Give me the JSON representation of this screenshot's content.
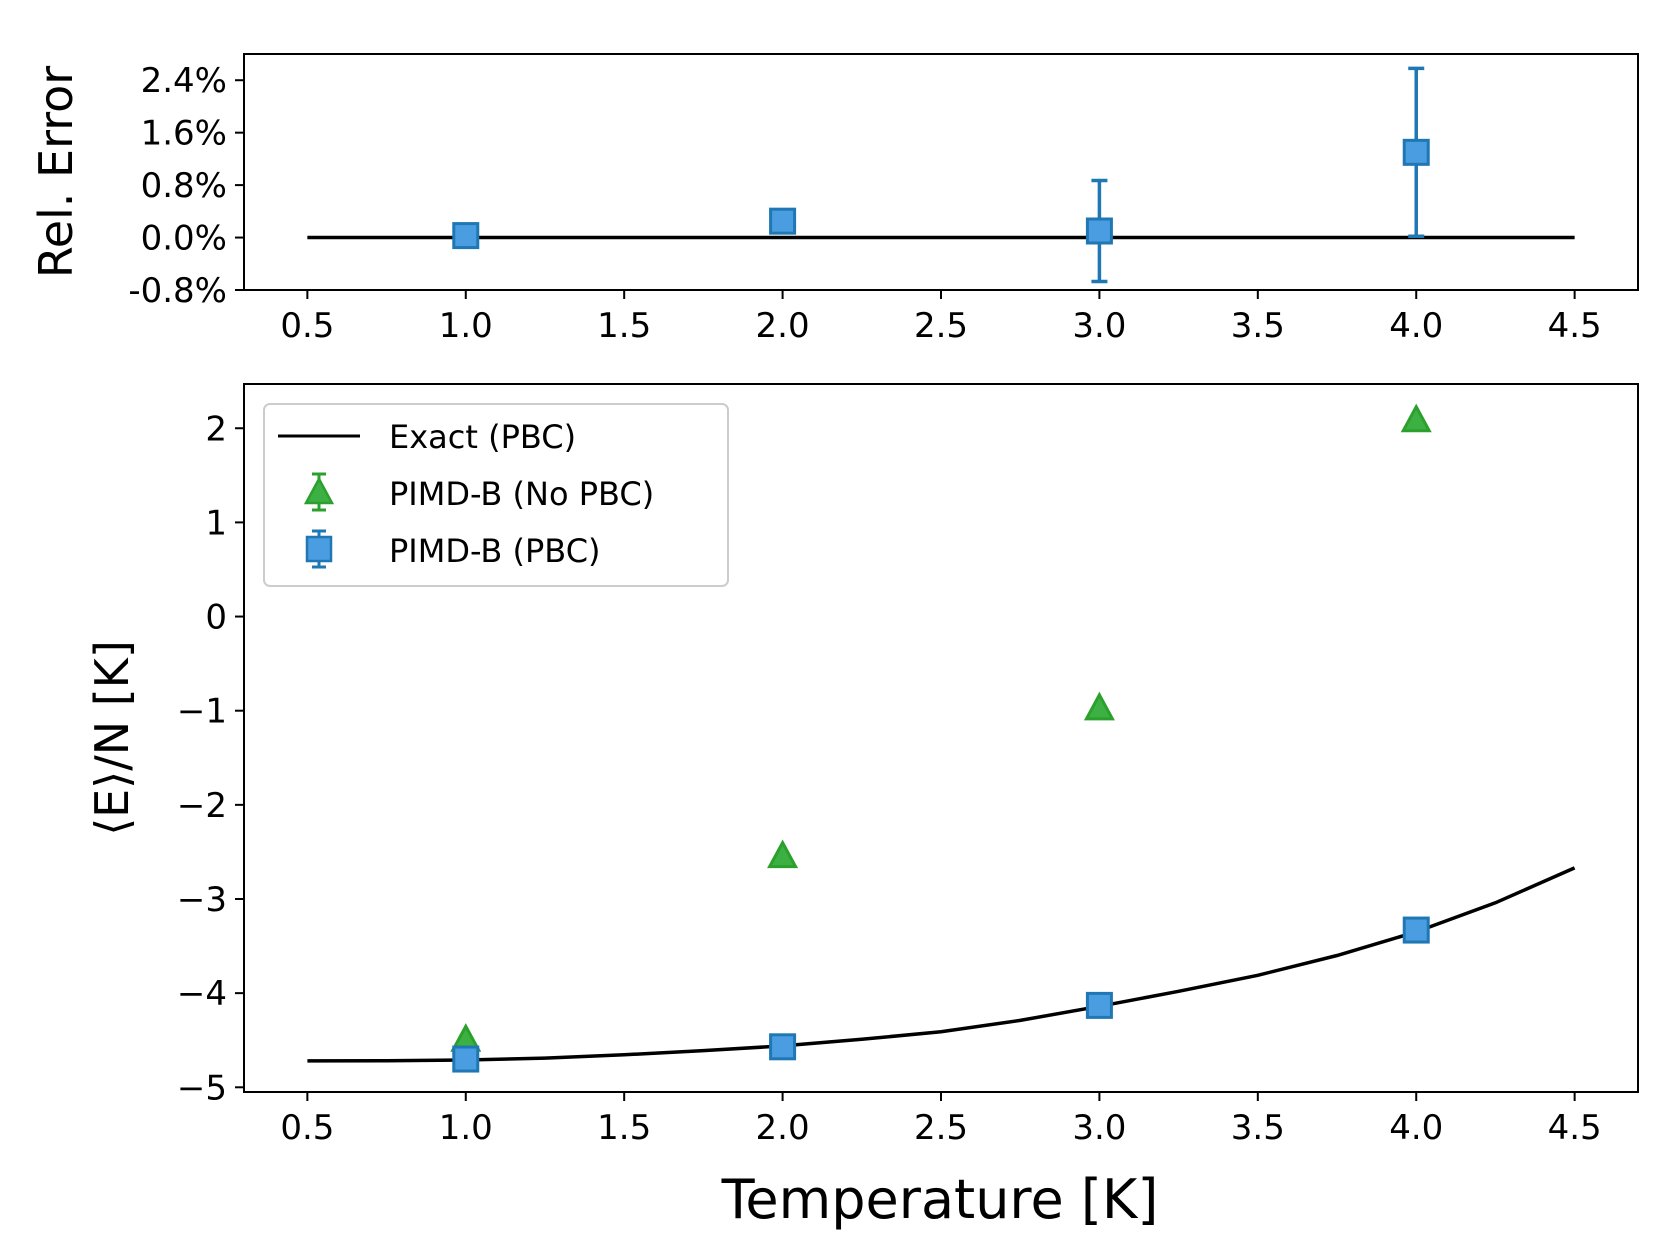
{
  "chart_data": [
    {
      "type": "scatter",
      "panel": "top",
      "ylabel": "Rel. Error",
      "xlabel": "",
      "xlim": [
        0.3,
        4.7
      ],
      "ylim": [
        -0.8,
        2.8
      ],
      "x_ticks": [
        0.5,
        1.0,
        1.5,
        2.0,
        2.5,
        3.0,
        3.5,
        4.0,
        4.5
      ],
      "x_tick_labels": [
        "0.5",
        "1.0",
        "1.5",
        "2.0",
        "2.5",
        "3.0",
        "3.5",
        "4.0",
        "4.5"
      ],
      "y_ticks": [
        -0.8,
        0.0,
        0.8,
        1.6,
        2.4
      ],
      "y_tick_labels": [
        "-0.8%",
        "0.0%",
        "0.8%",
        "1.6%",
        "2.4%"
      ],
      "reference_line": {
        "x": [
          0.5,
          4.5
        ],
        "y": [
          0.0,
          0.0
        ],
        "color": "#000000"
      },
      "series": [
        {
          "name": "PIMD-B (PBC)",
          "marker": "square",
          "color": "#4a9de0",
          "edge_color": "#1f77b4",
          "x": [
            1.0,
            2.0,
            3.0,
            4.0
          ],
          "y": [
            0.03,
            0.25,
            0.1,
            1.3
          ],
          "yerr": [
            0.02,
            0.08,
            0.77,
            1.28
          ]
        }
      ]
    },
    {
      "type": "scatter",
      "panel": "bottom",
      "ylabel": "⟨E⟩/N [K]",
      "xlabel": "Temperature [K]",
      "xlim": [
        0.3,
        4.7
      ],
      "ylim": [
        -5.05,
        2.47
      ],
      "x_ticks": [
        0.5,
        1.0,
        1.5,
        2.0,
        2.5,
        3.0,
        3.5,
        4.0,
        4.5
      ],
      "x_tick_labels": [
        "0.5",
        "1.0",
        "1.5",
        "2.0",
        "2.5",
        "3.0",
        "3.5",
        "4.0",
        "4.5"
      ],
      "y_ticks": [
        2,
        1,
        0,
        -1,
        -2,
        -3,
        -4,
        -5
      ],
      "y_tick_labels": [
        "2",
        "1",
        "0",
        "−1",
        "−2",
        "−3",
        "−4",
        "−5"
      ],
      "legend": {
        "position": "upper-left",
        "entries": [
          "Exact (PBC)",
          "PIMD-B (No PBC)",
          "PIMD-B (PBC)"
        ]
      },
      "series": [
        {
          "name": "Exact (PBC)",
          "kind": "line",
          "color": "#000000",
          "x": [
            0.5,
            0.75,
            1.0,
            1.25,
            1.5,
            1.75,
            2.0,
            2.25,
            2.5,
            2.75,
            3.0,
            3.25,
            3.5,
            3.75,
            4.0,
            4.25,
            4.5
          ],
          "y": [
            -4.72,
            -4.718,
            -4.71,
            -4.69,
            -4.655,
            -4.61,
            -4.56,
            -4.49,
            -4.41,
            -4.29,
            -4.14,
            -3.98,
            -3.81,
            -3.6,
            -3.35,
            -3.04,
            -2.67
          ]
        },
        {
          "name": "PIMD-B (No PBC)",
          "kind": "scatter",
          "marker": "triangle",
          "color": "#3cb043",
          "edge_color": "#2ca02c",
          "x": [
            1.0,
            2.0,
            3.0,
            4.0
          ],
          "y": [
            -4.5,
            -2.55,
            -0.98,
            2.08
          ]
        },
        {
          "name": "PIMD-B (PBC)",
          "kind": "scatter",
          "marker": "square",
          "color": "#4a9de0",
          "edge_color": "#1f77b4",
          "x": [
            1.0,
            2.0,
            3.0,
            4.0
          ],
          "y": [
            -4.7,
            -4.57,
            -4.13,
            -3.33
          ]
        }
      ]
    }
  ]
}
